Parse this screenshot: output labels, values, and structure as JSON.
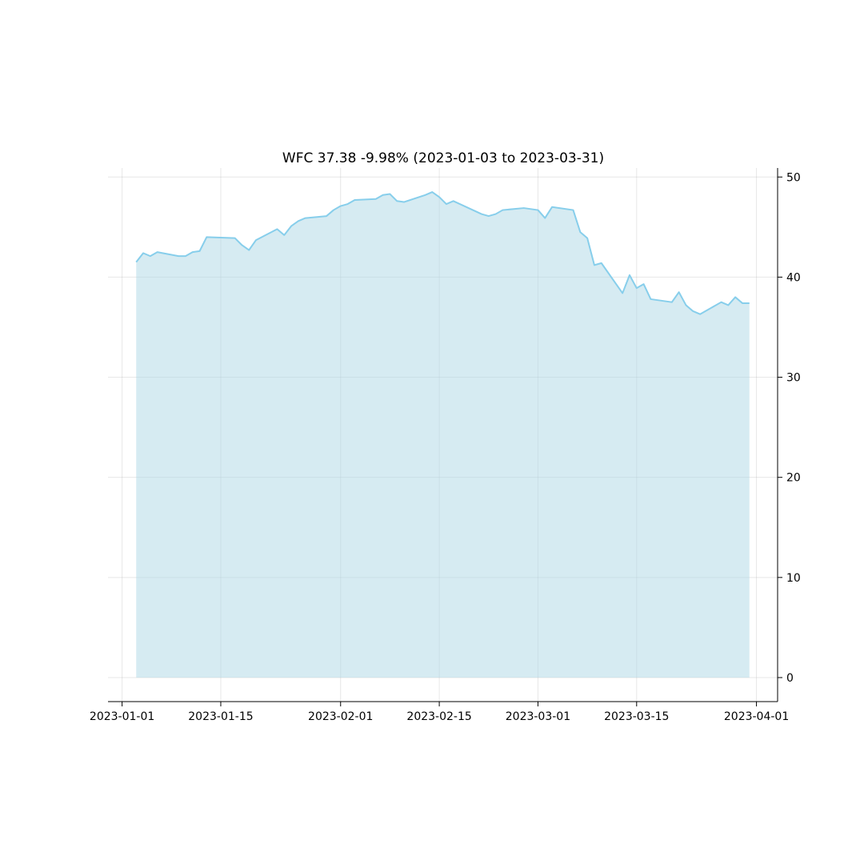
{
  "chart_data": {
    "type": "area",
    "title": "WFC 37.38 -9.98% (2023-01-03 to 2023-03-31)",
    "xlabel": "",
    "ylabel": "",
    "x_tick_labels": [
      "2023-01-01",
      "2023-01-15",
      "2023-02-01",
      "2023-02-15",
      "2023-03-01",
      "2023-03-15",
      "2023-04-01"
    ],
    "y_ticks": [
      0,
      10,
      20,
      30,
      40,
      50
    ],
    "ylim": [
      -2.4,
      50.9
    ],
    "xlim": [
      "2022-12-30",
      "2023-04-04"
    ],
    "grid": true,
    "y_axis_side": "right",
    "line_color": "#87ceeb",
    "fill_color": "#add8e6",
    "series": [
      {
        "points": [
          [
            "2023-01-03",
            41.5
          ],
          [
            "2023-01-04",
            42.4
          ],
          [
            "2023-01-05",
            42.1
          ],
          [
            "2023-01-06",
            42.5
          ],
          [
            "2023-01-09",
            42.1
          ],
          [
            "2023-01-10",
            42.1
          ],
          [
            "2023-01-11",
            42.5
          ],
          [
            "2023-01-12",
            42.6
          ],
          [
            "2023-01-13",
            44.0
          ],
          [
            "2023-01-17",
            43.9
          ],
          [
            "2023-01-18",
            43.2
          ],
          [
            "2023-01-19",
            42.7
          ],
          [
            "2023-01-20",
            43.7
          ],
          [
            "2023-01-23",
            44.8
          ],
          [
            "2023-01-24",
            44.2
          ],
          [
            "2023-01-25",
            45.1
          ],
          [
            "2023-01-26",
            45.6
          ],
          [
            "2023-01-27",
            45.9
          ],
          [
            "2023-01-30",
            46.1
          ],
          [
            "2023-01-31",
            46.7
          ],
          [
            "2023-02-01",
            47.1
          ],
          [
            "2023-02-02",
            47.3
          ],
          [
            "2023-02-03",
            47.7
          ],
          [
            "2023-02-06",
            47.8
          ],
          [
            "2023-02-07",
            48.2
          ],
          [
            "2023-02-08",
            48.3
          ],
          [
            "2023-02-09",
            47.6
          ],
          [
            "2023-02-10",
            47.5
          ],
          [
            "2023-02-13",
            48.2
          ],
          [
            "2023-02-14",
            48.5
          ],
          [
            "2023-02-15",
            48.0
          ],
          [
            "2023-02-16",
            47.3
          ],
          [
            "2023-02-17",
            47.6
          ],
          [
            "2023-02-21",
            46.3
          ],
          [
            "2023-02-22",
            46.1
          ],
          [
            "2023-02-23",
            46.3
          ],
          [
            "2023-02-24",
            46.7
          ],
          [
            "2023-02-27",
            46.9
          ],
          [
            "2023-02-28",
            46.8
          ],
          [
            "2023-03-01",
            46.7
          ],
          [
            "2023-03-02",
            45.9
          ],
          [
            "2023-03-03",
            47.0
          ],
          [
            "2023-03-06",
            46.7
          ],
          [
            "2023-03-07",
            44.5
          ],
          [
            "2023-03-08",
            43.9
          ],
          [
            "2023-03-09",
            41.2
          ],
          [
            "2023-03-10",
            41.4
          ],
          [
            "2023-03-13",
            38.4
          ],
          [
            "2023-03-14",
            40.2
          ],
          [
            "2023-03-15",
            38.9
          ],
          [
            "2023-03-16",
            39.3
          ],
          [
            "2023-03-17",
            37.8
          ],
          [
            "2023-03-20",
            37.5
          ],
          [
            "2023-03-21",
            38.5
          ],
          [
            "2023-03-22",
            37.2
          ],
          [
            "2023-03-23",
            36.6
          ],
          [
            "2023-03-24",
            36.3
          ],
          [
            "2023-03-27",
            37.5
          ],
          [
            "2023-03-28",
            37.2
          ],
          [
            "2023-03-29",
            38.0
          ],
          [
            "2023-03-30",
            37.4
          ],
          [
            "2023-03-31",
            37.4
          ]
        ]
      }
    ]
  }
}
